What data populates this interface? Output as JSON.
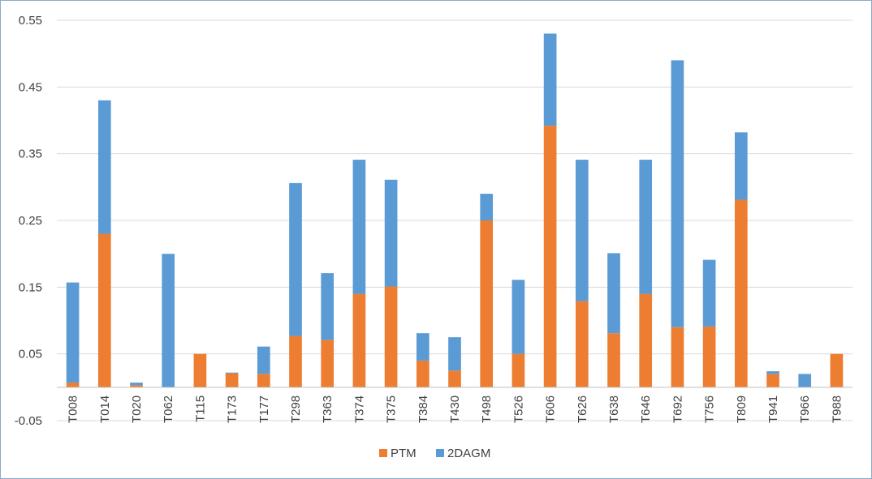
{
  "colors": {
    "PTM": "#ED7D31",
    "2DAGM": "#5B9BD5",
    "gridline": "#d9d9d9",
    "axis": "#bfbfbf",
    "text": "#404040"
  },
  "chart_data": {
    "type": "bar",
    "stacked": true,
    "categories": [
      "T008",
      "T014",
      "T020",
      "T062",
      "T115",
      "T173",
      "T177",
      "T298",
      "T363",
      "T374",
      "T375",
      "T384",
      "T430",
      "T498",
      "T526",
      "T606",
      "T626",
      "T638",
      "T646",
      "T692",
      "T756",
      "T809",
      "T941",
      "T966",
      "T988"
    ],
    "series": [
      {
        "name": "PTM",
        "color": "#ED7D31",
        "values": [
          0.007,
          0.23,
          0.003,
          0,
          0.05,
          0.021,
          0.02,
          0.077,
          0.071,
          0.14,
          0.151,
          0.04,
          0.025,
          0.25,
          0.05,
          0.392,
          0.129,
          0.081,
          0.14,
          0.09,
          0.091,
          0.281,
          0.02,
          0,
          0.05
        ]
      },
      {
        "name": "2DAGM",
        "color": "#5B9BD5",
        "values": [
          0.15,
          0.2,
          0.004,
          0.2,
          0,
          0.001,
          0.041,
          0.229,
          0.1,
          0.201,
          0.16,
          0.041,
          0.05,
          0.04,
          0.111,
          0.138,
          0.212,
          0.12,
          0.201,
          0.4,
          0.1,
          0.101,
          0.004,
          0.02,
          0
        ]
      }
    ],
    "ylim": [
      -0.05,
      0.55
    ],
    "yticks": [
      -0.05,
      0.05,
      0.15,
      0.25,
      0.35,
      0.45,
      0.55
    ],
    "ytick_labels": [
      "-0.05",
      "0.05",
      "0.15",
      "0.25",
      "0.35",
      "0.45",
      "0.55"
    ],
    "title": "",
    "xlabel": "",
    "ylabel": "",
    "grid": true,
    "legend_position": "bottom"
  }
}
